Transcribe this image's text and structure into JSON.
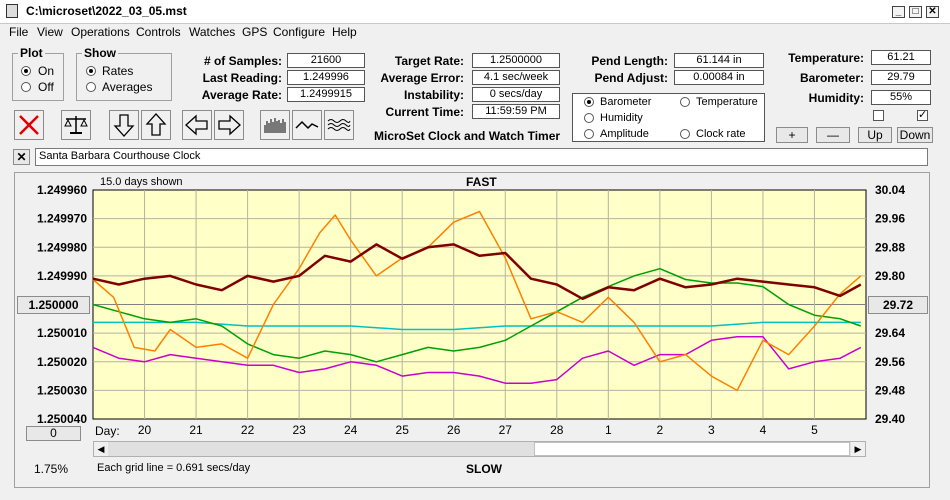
{
  "window": {
    "title": "C:\\microset\\2022_03_05.mst"
  },
  "menu": [
    "File",
    "View",
    "Operations",
    "Controls",
    "Watches",
    "GPS",
    "Configure",
    "Help"
  ],
  "plot_group": {
    "label": "Plot",
    "on_label": "On",
    "off_label": "Off"
  },
  "show_group": {
    "label": "Show",
    "rates_label": "Rates",
    "averages_label": "Averages"
  },
  "stats": {
    "samples_label": "# of Samples:",
    "samples_value": "21600",
    "last_reading_label": "Last Reading:",
    "last_reading_value": "1.249996",
    "average_rate_label": "Average Rate:",
    "average_rate_value": "1.2499915",
    "target_rate_label": "Target Rate:",
    "target_rate_value": "1.2500000",
    "average_error_label": "Average Error:",
    "average_error_value": "4.1 sec/week",
    "instability_label": "Instability:",
    "instability_value": "0 secs/day",
    "current_time_label": "Current Time:",
    "current_time_value": "11:59:59 PM",
    "pend_length_label": "Pend Length:",
    "pend_length_value": "61.144 in",
    "pend_adjust_label": "Pend Adjust:",
    "pend_adjust_value": "0.00084 in",
    "temperature_label": "Temperature:",
    "temperature_value": "61.21",
    "barometer_label": "Barometer:",
    "barometer_value": "29.79",
    "humidity_label": "Humidity:",
    "humidity_value": "55%"
  },
  "app_name": "MicroSet Clock and Watch Timer",
  "aux_options": {
    "barometer": "Barometer",
    "temperature": "Temperature",
    "humidity": "Humidity",
    "amplitude": "Amplitude",
    "clock_rate": "Clock rate"
  },
  "colors": {
    "barometer": "#ff8000",
    "temperature": "#00a000",
    "humidity": "#cc00cc",
    "amplitude": "#00c0c0",
    "clock_rate": "#800000",
    "chart_bg": "#ffffc8"
  },
  "aux_buttons": {
    "plus": "+",
    "minus": "—",
    "up": "Up",
    "down": "Down"
  },
  "clock_name": "Santa Barbara Courthouse Clock",
  "chart": {
    "days_shown": "15.0 days shown",
    "fast_label": "FAST",
    "slow_label": "SLOW",
    "left_value_button": "1.250000",
    "right_value_button": "29.72",
    "offset_button": "0",
    "percent": "1.75%",
    "grid_note": "Each grid line = 0.691 secs/day",
    "day_label": "Day:"
  },
  "chart_data": {
    "type": "line",
    "x_unit": "day",
    "x_ticks": [
      "20",
      "21",
      "22",
      "23",
      "24",
      "25",
      "26",
      "27",
      "28",
      "1",
      "2",
      "3",
      "4",
      "5"
    ],
    "y_left": {
      "ticks": [
        "1.249960",
        "1.249970",
        "1.249980",
        "1.249990",
        "1.250000",
        "1.250010",
        "1.250020",
        "1.250030",
        "1.250040"
      ],
      "ylim": [
        1.24996,
        1.25004
      ],
      "reversed": true
    },
    "y_right": {
      "ticks": [
        "30.04",
        "29.96",
        "29.88",
        "29.80",
        "29.72",
        "29.64",
        "29.56",
        "29.48",
        "29.40"
      ],
      "ylim": [
        29.4,
        30.04
      ]
    },
    "xlim": [
      0,
      15
    ],
    "series": [
      {
        "name": "Clock rate",
        "axis": "left",
        "color": "#800000",
        "points": [
          [
            0,
            1.249991
          ],
          [
            0.5,
            1.249993
          ],
          [
            1,
            1.249991
          ],
          [
            1.5,
            1.24999
          ],
          [
            2,
            1.249993
          ],
          [
            2.5,
            1.249995
          ],
          [
            3,
            1.24999
          ],
          [
            3.5,
            1.249992
          ],
          [
            4,
            1.24999
          ],
          [
            4.5,
            1.249983
          ],
          [
            5,
            1.249985
          ],
          [
            5.5,
            1.249979
          ],
          [
            6,
            1.249984
          ],
          [
            6.5,
            1.24998
          ],
          [
            7,
            1.249979
          ],
          [
            7.5,
            1.249983
          ],
          [
            8,
            1.249982
          ],
          [
            8.5,
            1.249991
          ],
          [
            9,
            1.249993
          ],
          [
            9.5,
            1.249998
          ],
          [
            10,
            1.249994
          ],
          [
            10.5,
            1.249995
          ],
          [
            11,
            1.249991
          ],
          [
            11.5,
            1.249994
          ],
          [
            12,
            1.249993
          ],
          [
            12.5,
            1.249991
          ],
          [
            13,
            1.249992
          ],
          [
            13.5,
            1.249993
          ],
          [
            14,
            1.249994
          ],
          [
            14.5,
            1.249997
          ],
          [
            14.9,
            1.249993
          ]
        ]
      },
      {
        "name": "Barometer",
        "axis": "right",
        "color": "#ff8000",
        "points": [
          [
            0,
            29.79
          ],
          [
            0.4,
            29.74
          ],
          [
            0.8,
            29.6
          ],
          [
            1.2,
            29.59
          ],
          [
            1.5,
            29.65
          ],
          [
            2,
            29.6
          ],
          [
            2.5,
            29.61
          ],
          [
            3,
            29.57
          ],
          [
            3.5,
            29.72
          ],
          [
            4,
            29.82
          ],
          [
            4.4,
            29.92
          ],
          [
            4.7,
            29.97
          ],
          [
            5,
            29.9
          ],
          [
            5.5,
            29.8
          ],
          [
            6,
            29.85
          ],
          [
            6.5,
            29.88
          ],
          [
            7,
            29.95
          ],
          [
            7.5,
            29.98
          ],
          [
            8,
            29.85
          ],
          [
            8.5,
            29.68
          ],
          [
            9,
            29.7
          ],
          [
            9.5,
            29.67
          ],
          [
            10,
            29.74
          ],
          [
            10.5,
            29.67
          ],
          [
            11,
            29.56
          ],
          [
            11.5,
            29.58
          ],
          [
            12,
            29.52
          ],
          [
            12.5,
            29.48
          ],
          [
            13,
            29.62
          ],
          [
            13.5,
            29.58
          ],
          [
            14,
            29.66
          ],
          [
            14.5,
            29.75
          ],
          [
            14.9,
            29.8
          ]
        ]
      },
      {
        "name": "Temperature",
        "axis": "right",
        "color": "#00a000",
        "points": [
          [
            0,
            29.72
          ],
          [
            0.5,
            29.7
          ],
          [
            1,
            29.68
          ],
          [
            1.5,
            29.67
          ],
          [
            2,
            29.68
          ],
          [
            2.5,
            29.66
          ],
          [
            3,
            29.61
          ],
          [
            3.5,
            29.58
          ],
          [
            4,
            29.57
          ],
          [
            4.5,
            29.59
          ],
          [
            5,
            29.58
          ],
          [
            5.5,
            29.56
          ],
          [
            6,
            29.58
          ],
          [
            6.5,
            29.6
          ],
          [
            7,
            29.59
          ],
          [
            7.5,
            29.6
          ],
          [
            8,
            29.62
          ],
          [
            8.5,
            29.66
          ],
          [
            9,
            29.7
          ],
          [
            9.5,
            29.74
          ],
          [
            10,
            29.77
          ],
          [
            10.5,
            29.8
          ],
          [
            11,
            29.82
          ],
          [
            11.5,
            29.79
          ],
          [
            12,
            29.78
          ],
          [
            12.5,
            29.78
          ],
          [
            13,
            29.77
          ],
          [
            13.5,
            29.72
          ],
          [
            14,
            29.69
          ],
          [
            14.5,
            29.68
          ],
          [
            14.9,
            29.66
          ]
        ]
      },
      {
        "name": "Amplitude",
        "axis": "right",
        "color": "#00c0c0",
        "points": [
          [
            0,
            29.67
          ],
          [
            1,
            29.67
          ],
          [
            2,
            29.67
          ],
          [
            3,
            29.66
          ],
          [
            4,
            29.66
          ],
          [
            5,
            29.66
          ],
          [
            6,
            29.65
          ],
          [
            7,
            29.65
          ],
          [
            8,
            29.66
          ],
          [
            9,
            29.66
          ],
          [
            10,
            29.66
          ],
          [
            11,
            29.66
          ],
          [
            12,
            29.66
          ],
          [
            13,
            29.67
          ],
          [
            14,
            29.67
          ],
          [
            14.9,
            29.67
          ]
        ]
      },
      {
        "name": "Humidity",
        "axis": "right",
        "color": "#cc00cc",
        "points": [
          [
            0,
            29.6
          ],
          [
            0.5,
            29.57
          ],
          [
            1,
            29.56
          ],
          [
            1.5,
            29.58
          ],
          [
            2,
            29.57
          ],
          [
            2.5,
            29.56
          ],
          [
            3,
            29.55
          ],
          [
            3.5,
            29.55
          ],
          [
            4,
            29.53
          ],
          [
            4.5,
            29.54
          ],
          [
            5,
            29.56
          ],
          [
            5.5,
            29.55
          ],
          [
            6,
            29.52
          ],
          [
            6.5,
            29.53
          ],
          [
            7,
            29.53
          ],
          [
            7.5,
            29.52
          ],
          [
            8,
            29.5
          ],
          [
            8.5,
            29.5
          ],
          [
            9,
            29.51
          ],
          [
            9.5,
            29.57
          ],
          [
            10,
            29.59
          ],
          [
            10.5,
            29.55
          ],
          [
            11,
            29.58
          ],
          [
            11.5,
            29.58
          ],
          [
            12,
            29.62
          ],
          [
            12.5,
            29.63
          ],
          [
            13,
            29.63
          ],
          [
            13.5,
            29.54
          ],
          [
            14,
            29.56
          ],
          [
            14.5,
            29.57
          ],
          [
            14.9,
            29.6
          ]
        ]
      }
    ]
  }
}
